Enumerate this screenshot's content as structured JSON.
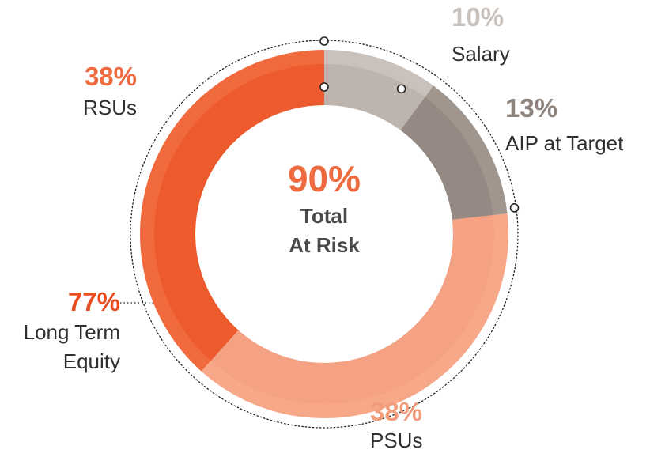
{
  "chart_data": {
    "type": "pie",
    "center": {
      "value": "90%",
      "label_line1": "Total",
      "label_line2": "At Risk"
    },
    "slices": [
      {
        "label": "Salary",
        "value_label": "10%",
        "value": 10,
        "color": "#c9c1bc",
        "label_color": "#c9c1bc",
        "inner_color": "#bdb4ae"
      },
      {
        "label": "AIP at Target",
        "value_label": "13%",
        "value": 13,
        "color": "#a1968e",
        "label_color": "#8e847d",
        "inner_color": "#958a83"
      },
      {
        "label": "PSUs",
        "value_label": "38%",
        "value": 38,
        "color": "#f7a889",
        "label_color": "#f29c7c",
        "inner_color": "#f4a283"
      },
      {
        "label": "RSUs",
        "value_label": "38%",
        "value": 38,
        "color": "#f06a3e",
        "label_color": "#ee6a3f",
        "inner_color": "#ec5a2e"
      }
    ],
    "group_label": {
      "value_label": "77%",
      "line1": "Long Term",
      "line2": "Equity",
      "color": "#e84e22"
    }
  }
}
